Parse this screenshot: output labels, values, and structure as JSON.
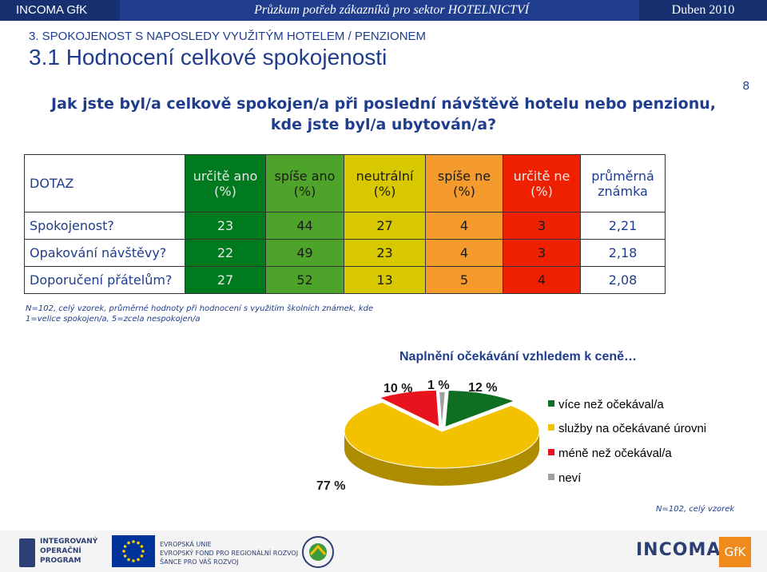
{
  "header": {
    "left": "INCOMA GfK",
    "center": "Průzkum potřeb zákazníků pro sektor HOTELNICTVÍ",
    "right": "Duben 2010"
  },
  "section_title": "3. SPOKOJENOST S NAPOSLEDY VYUŽITÝM HOTELEM / PENZIONEM",
  "heading": "3.1 Hodnocení celkové spokojenosti",
  "page_number": "8",
  "question": {
    "line1": "Jak jste byl/a celkově spokojen/a při poslední návštěvě hotelu nebo penzionu,",
    "line2": "kde jste byl/a ubytován/a?"
  },
  "table": {
    "corner": "DOTAZ",
    "columns": [
      {
        "l1": "určitě ano",
        "l2": "(%)"
      },
      {
        "l1": "spíše ano",
        "l2": "(%)"
      },
      {
        "l1": "neutrální",
        "l2": "(%)"
      },
      {
        "l1": "spíše ne",
        "l2": "(%)"
      },
      {
        "l1": "určitě ne",
        "l2": "(%)"
      },
      {
        "l1": "průměrná",
        "l2": "známka"
      }
    ],
    "rows": [
      {
        "label": "Spokojenost?",
        "values": [
          "23",
          "44",
          "27",
          "4",
          "3",
          "2,21"
        ]
      },
      {
        "label": "Opakování návštěvy?",
        "values": [
          "22",
          "49",
          "23",
          "4",
          "3",
          "2,18"
        ]
      },
      {
        "label": "Doporučení přátelům?",
        "values": [
          "27",
          "52",
          "13",
          "5",
          "4",
          "2,08"
        ]
      }
    ],
    "colors": [
      "#007a1e",
      "#4ea32a",
      "#d8c800",
      "#f59b2d",
      "#ef2000",
      "#ffffff"
    ]
  },
  "table_note": {
    "line1": "N=102, celý vzorek, průměrné hodnoty při hodnocení s využitím školních známek, kde",
    "line2": "1=velice spokojen/a, 5=zcela nespokojen/a"
  },
  "chart_data": {
    "type": "pie",
    "title": "Naplnění očekávání vzhledem k ceně…",
    "slices": [
      {
        "name": "více než očekával/a",
        "value": 12,
        "label": "12 %",
        "color": "#0e6e22"
      },
      {
        "name": "služby na očekávané úrovni",
        "value": 77,
        "label": "77 %",
        "color": "#f2c200"
      },
      {
        "name": "méně než očekával/a",
        "value": 10,
        "label": "10 %",
        "color": "#e8131c"
      },
      {
        "name": "neví",
        "value": 1,
        "label": "1 %",
        "color": "#a0a0a0"
      }
    ],
    "note": "N=102, celý vzorek",
    "legend": "right"
  },
  "footer": {
    "op_line1": "INTEGROVANÝ",
    "op_line2": "OPERAČNÍ",
    "op_line3": "PROGRAM",
    "eu_line1": "EVROPSKÁ UNIE",
    "eu_line2": "EVROPSKÝ FOND PRO REGIONÁLNÍ ROZVOJ",
    "eu_line3": "ŠANCE PRO VÁŠ ROZVOJ",
    "incoma": "INCOMA",
    "gfk": "GfK"
  }
}
